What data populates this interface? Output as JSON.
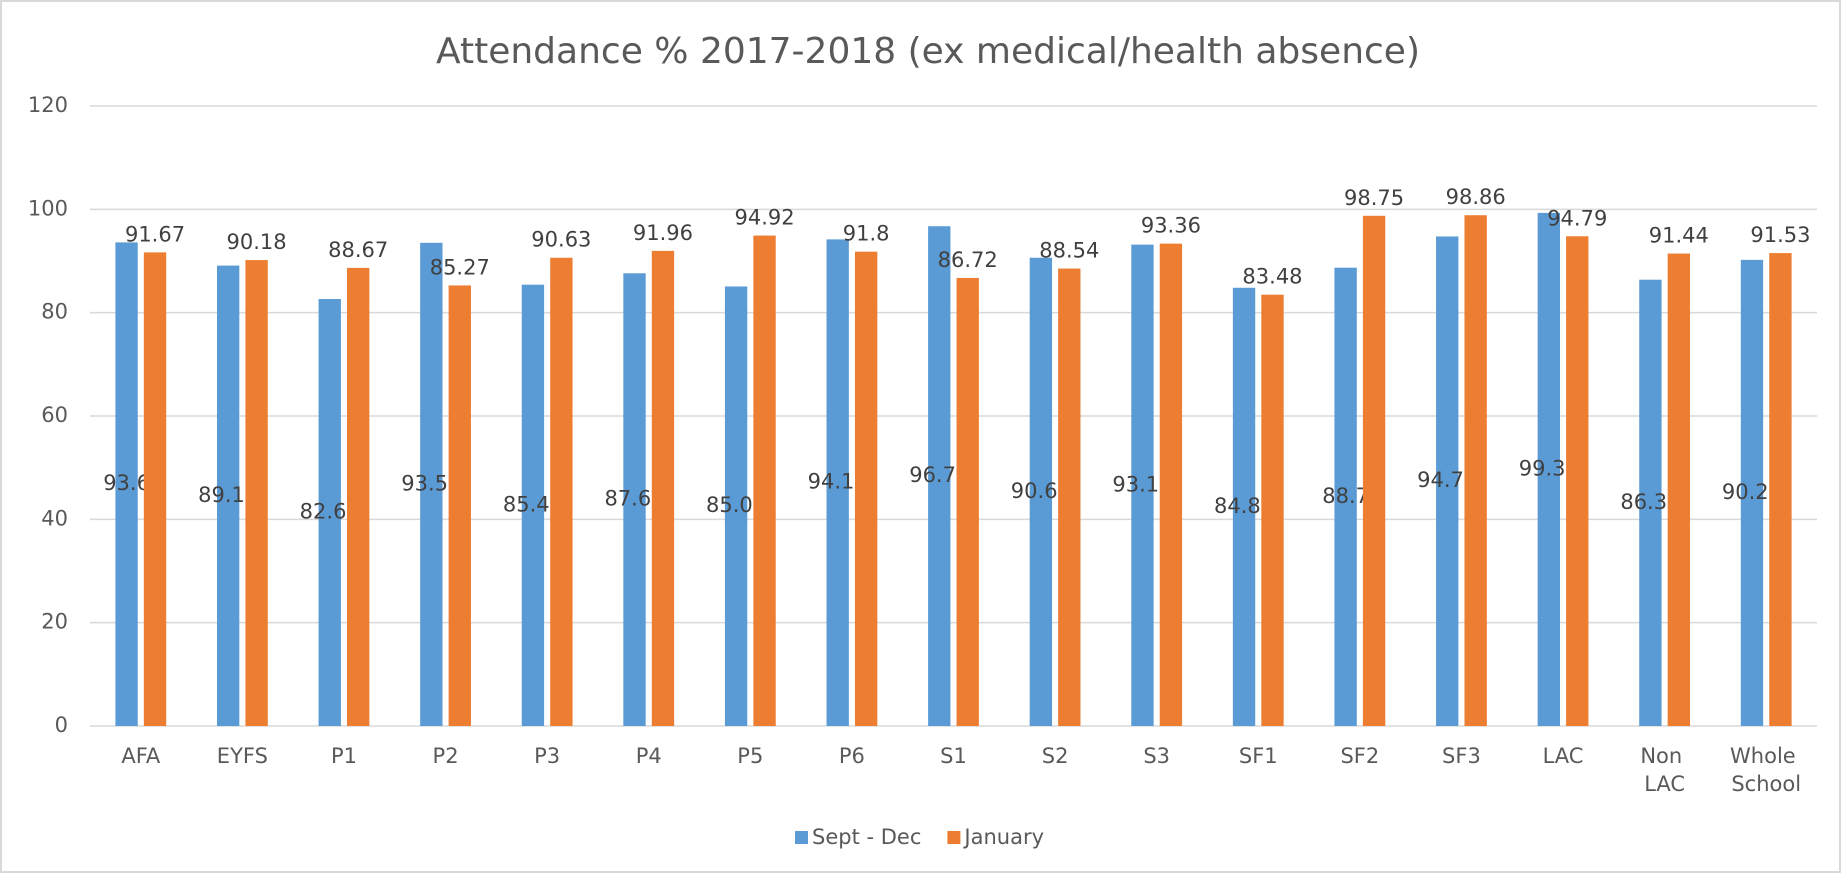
{
  "chart_data": {
    "type": "bar",
    "title": "Attendance % 2017-2018 (ex medical/health absence)",
    "categories": [
      "AFA",
      "EYFS",
      "P1",
      "P2",
      "P3",
      "P4",
      "P5",
      "P6",
      "S1",
      "S2",
      "S3",
      "SF1",
      "SF2",
      "SF3",
      "LAC",
      "Non LAC",
      "Whole School"
    ],
    "series": [
      {
        "name": "Sept - Dec",
        "color": "#5b9bd5",
        "values": [
          93.6,
          89.11,
          82.64,
          93.52,
          85.42,
          87.62,
          85.07,
          94.18,
          96.73,
          90.63,
          93.17,
          84.82,
          88.7,
          94.75,
          99.31,
          86.38,
          90.22
        ]
      },
      {
        "name": "January",
        "color": "#ed7d31",
        "values": [
          91.67,
          90.18,
          88.67,
          85.27,
          90.63,
          91.96,
          94.92,
          91.8,
          86.72,
          88.54,
          93.36,
          83.48,
          98.75,
          98.86,
          94.79,
          91.44,
          91.53
        ]
      }
    ],
    "ylim": [
      0,
      120
    ],
    "yticks": [
      0,
      20,
      40,
      60,
      80,
      100,
      120
    ],
    "grid": true,
    "legend": "bottom"
  }
}
